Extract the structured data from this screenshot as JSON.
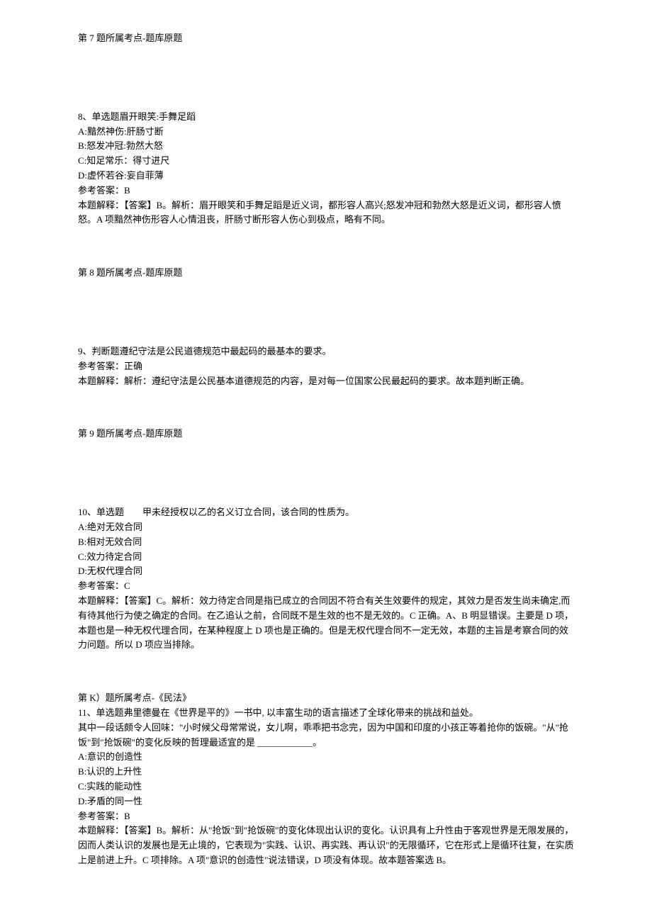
{
  "colors": {
    "text": "#000000",
    "background": "#ffffff"
  },
  "typography": {
    "fontFamily": "SimSun",
    "fontSize": 13,
    "lineHeight": 1.6
  },
  "q7": {
    "topicTag": "第 7 题所属考点-题库原题"
  },
  "q8": {
    "title": "8、单选题眉开眼笑:手舞足蹈",
    "optionA": "A:黯然神伤:肝肠寸断",
    "optionB": "B:怒发冲冠:勃然大怒",
    "optionC": "C:知足常乐：得寸进尺",
    "optionD": "D:虚怀若谷:妄自菲薄",
    "answerLabel": "参考答案：B",
    "explanation": "本题解释：【答案】B。解析：眉开眼笑和手舞足蹈是近义词，都形容人高兴;怒发冲冠和勃然大怒是近义词，都形容人愤怒。A 项黯然神伤形容人心情沮丧，肝肠寸断形容人伤心到极点，略有不同。",
    "topicTag": "第 8 题所属考点-题库原题"
  },
  "q9": {
    "title": "9、判断题遵纪守法是公民道德规范中最起码的最基本的要求。",
    "answerLabel": "参考答案：正确",
    "explanation": "本题解释：解析：遵纪守法是公民基本道德规范的内容，是对每一位国家公民最起码的要求。故本题判断正确。",
    "topicTag": "第 9 题所属考点-题库原题"
  },
  "q10": {
    "title": "10、单选题　　甲未经授权以乙的名义订立合同，该合同的性质为。",
    "optionA": "A:绝对无效合同",
    "optionB": "B:相对无效合同",
    "optionC": "C:效力待定合同",
    "optionD": "D:无权代理合同",
    "answerLabel": "参考答案：C",
    "explanation": "本题解释：【答案】C。解析：效力待定合同是指已成立的合同因不符合有关生效要件的规定，其效力是否发生尚未确定,而有待其他行为使之确定的合同。在乙追认之前，合同既不是生效的也不是无效的。C 正确。A、B 明显错误。主要是 D 项，本题也是一种无权代理合同，在某种程度上 D 项也是正确的。但是无权代理合同不一定无效，本题的主旨是考察合同的效力问题。所以 D 项应当排除。",
    "topicTag": "第 K）题所属考点-《民法》"
  },
  "q11": {
    "titleLine1": "11、单选题弗里德曼在《世界是平的》一书中, 以丰富生动的语言描述了全球化带来的挑战和益处。",
    "titleLine2": "其中一段话颇令人回味：\"小时候父母常常说，女儿啊，乖乖把书念完，因为中国和印度的小孩正等着抢你的饭碗。\"从\"抢饭\"到\"抢饭碗\"的变化反映的哲理最适宜的是 ____________。",
    "optionA": "A:意识的创造性",
    "optionB": "B:认识的上升性",
    "optionC": "C:实践的能动性",
    "optionD": "D:矛盾的同一性",
    "answerLabel": "参考答案：B",
    "explanation": "本题解释：【答案】B。解析：从\"抢饭\"到\"抢饭碗\"的变化体现出认识的变化。认识具有上升性由于客观世界是无限发展的，因而人类认识的发展也是无止境的，它表现为\"实践、认识、再实践、再认识\"的无限循环，它在形式上是循环往复，在实质上是前进上升。C 项排除。A 项\"意识的创造性\"说法错误，D 项没有体现。故本题答案选 B。"
  }
}
